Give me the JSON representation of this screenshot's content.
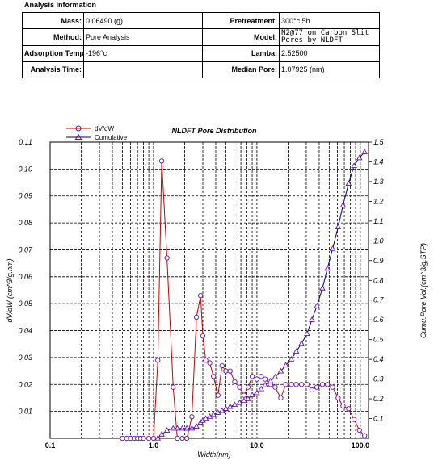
{
  "analysis": {
    "section_title": "Analysis Information",
    "rows": [
      [
        {
          "label": "Mass:",
          "value": "0.06490 (g)"
        },
        {
          "label": "Pretreatment:",
          "value": "300°c 5h"
        }
      ],
      [
        {
          "label": "Method:",
          "value": "Pore Analysis"
        },
        {
          "label": "Model:",
          "value": "N2@77 on Carbon Slit Pores by NLDFT"
        }
      ],
      [
        {
          "label": "Adsorption Temp.:",
          "value": "-196°c"
        },
        {
          "label": "Lamba:",
          "value": "2.52500"
        }
      ],
      [
        {
          "label": "Analysis Time:",
          "value": ""
        },
        {
          "label": "Median Pore:",
          "value": "1.07925 (nm)"
        }
      ]
    ]
  },
  "chart_data": {
    "type": "line",
    "title": "NLDFT Pore Distribution",
    "xlabel": "Width(nm)",
    "ylabel": "dV/dW (cm^3/g.nm)",
    "y2label": "Cumu.Pore Vol.(cm^3/g,STP)",
    "x_scale": "log",
    "xlim": [
      0.1,
      120
    ],
    "ylim": [
      0,
      0.11
    ],
    "y2lim": [
      0,
      1.5
    ],
    "x_tick_labels": [
      "0.1",
      "1.0",
      "10.0",
      "100.0"
    ],
    "y_tick_labels": [
      "0.01",
      "0.02",
      "0.03",
      "0.04",
      "0.05",
      "0.06",
      "0.07",
      "0.08",
      "0.09",
      "0.10",
      "0.11"
    ],
    "y2_tick_labels": [
      "0.1",
      "0.2",
      "0.3",
      "0.4",
      "0.5",
      "0.6",
      "0.7",
      "0.8",
      "0.9",
      "1.0",
      "1.1",
      "1.2",
      "1.3",
      "1.4",
      "1.5"
    ],
    "grid": true,
    "legend_position": "top-left",
    "series": [
      {
        "name": "dV/dW",
        "axis": "left",
        "color": "#cc0000",
        "marker": "circle",
        "marker_color": "#6a0dad",
        "x": [
          0.5,
          0.55,
          0.6,
          0.65,
          0.7,
          0.75,
          0.8,
          0.9,
          1.0,
          1.1,
          1.2,
          1.35,
          1.55,
          1.7,
          1.9,
          2.1,
          2.35,
          2.6,
          2.85,
          3.0,
          3.2,
          3.5,
          3.8,
          4.2,
          4.6,
          5.0,
          5.5,
          6.1,
          6.8,
          7.5,
          8.2,
          9.0,
          10.0,
          11.0,
          12.0,
          13.5,
          15.0,
          17.0,
          19.0,
          21.5,
          24.0,
          27.0,
          30.5,
          34.0,
          38.0,
          43.0,
          48.0,
          54.0,
          61.0,
          68.0,
          77.0,
          87.0,
          98.0,
          110.0
        ],
        "y": [
          0,
          0,
          0,
          0,
          0,
          0,
          0,
          0,
          0,
          0.029,
          0.103,
          0.067,
          0.019,
          0.0,
          0.0,
          0.0,
          0.008,
          0.045,
          0.053,
          0.038,
          0.029,
          0.028,
          0.023,
          0.016,
          0.027,
          0.025,
          0.025,
          0.021,
          0.019,
          0.016,
          0.019,
          0.023,
          0.022,
          0.023,
          0.022,
          0.02,
          0.019,
          0.015,
          0.02,
          0.02,
          0.02,
          0.02,
          0.02,
          0.018,
          0.019,
          0.02,
          0.02,
          0.019,
          0.015,
          0.012,
          0.011,
          0.007,
          0.003,
          0.001
        ]
      },
      {
        "name": "Cumulative",
        "axis": "right",
        "color": "#000080",
        "marker": "triangle",
        "marker_color": "#6a0dad",
        "x": [
          1.1,
          1.2,
          1.35,
          1.55,
          1.7,
          1.9,
          2.1,
          2.35,
          2.6,
          2.85,
          3.0,
          3.2,
          3.5,
          3.8,
          4.2,
          4.6,
          5.0,
          5.5,
          6.1,
          6.8,
          7.5,
          8.2,
          9.0,
          10.0,
          11.0,
          12.0,
          13.5,
          15.0,
          17.0,
          19.0,
          21.5,
          24.0,
          27.0,
          30.5,
          34.0,
          38.0,
          43.0,
          48.0,
          54.0,
          61.0,
          68.0,
          77.0,
          87.0,
          98.0,
          110.0
        ],
        "y": [
          0.0,
          0.02,
          0.04,
          0.05,
          0.05,
          0.05,
          0.05,
          0.05,
          0.06,
          0.08,
          0.09,
          0.1,
          0.11,
          0.12,
          0.13,
          0.14,
          0.15,
          0.16,
          0.17,
          0.18,
          0.19,
          0.2,
          0.22,
          0.23,
          0.25,
          0.27,
          0.29,
          0.31,
          0.34,
          0.37,
          0.4,
          0.44,
          0.48,
          0.53,
          0.6,
          0.67,
          0.76,
          0.86,
          0.96,
          1.07,
          1.18,
          1.29,
          1.38,
          1.42,
          1.45
        ]
      }
    ]
  }
}
